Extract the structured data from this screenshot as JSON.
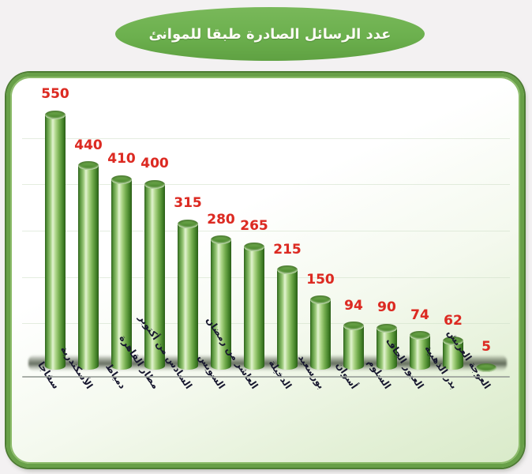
{
  "title": {
    "text": "عدد الرسائل الصادرة طبقا للموانئ"
  },
  "chart_data": {
    "type": "bar",
    "subtype": "3d-cylinder",
    "title": "عدد الرسائل الصادرة طبقا للموانئ",
    "categories": [
      "سفاجا",
      "الأسكندرية",
      "دمياط",
      "مطار القاهرة",
      "السادس من أكتوبر",
      "السويس",
      "العاشر من رمضان",
      "الدخيلة",
      "بورسعيد",
      "أسوان",
      "السلوم",
      "العبور الجاف",
      "بدر الذهبية",
      "العوجة العريش"
    ],
    "values": [
      550,
      440,
      410,
      400,
      315,
      280,
      265,
      215,
      150,
      94,
      90,
      74,
      62,
      5
    ],
    "xlabel": "",
    "ylabel": "",
    "ylim": [
      0,
      570
    ],
    "gridline_values": [
      100,
      200,
      300,
      400,
      500
    ],
    "grid": "faint horizontal gridlines",
    "legend_position": "none",
    "value_labels_position": "above bars",
    "category_label_rotation_deg": 56
  },
  "colors": {
    "title_bubble": "#6cb04e",
    "title_text": "#fdfcf5",
    "value_label": "#dc2a22",
    "bar_highlight": "#e2f3d0",
    "bar_dark": "#2d611b",
    "panel_border": "#68a048",
    "panel_bg_top": "#ffffff",
    "panel_bg_bottom": "#d9eac9",
    "page_bg": "#f3f1f2",
    "category_text": "#17172f"
  }
}
